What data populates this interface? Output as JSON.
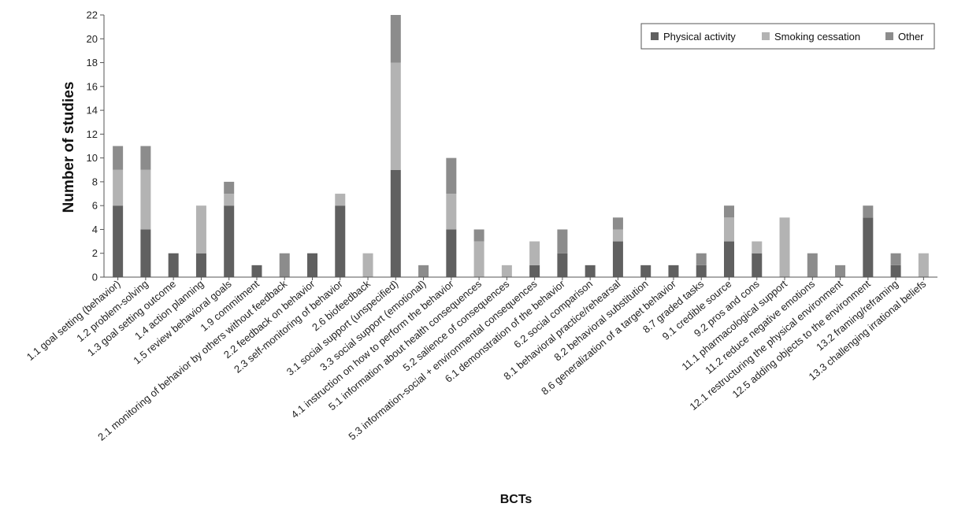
{
  "chart_data": {
    "type": "bar",
    "stacked": true,
    "xlabel": "BCTs",
    "ylabel": "Number of studies",
    "ylim": [
      0,
      22
    ],
    "yticks": [
      0,
      2,
      4,
      6,
      8,
      10,
      12,
      14,
      16,
      18,
      20,
      22
    ],
    "legend_position": "top-right",
    "grid": false,
    "categories": [
      "1.1 goal setting (behavior)",
      "1.2 problem-solving",
      "1.3 goal setting outcome",
      "1.4 action planning",
      "1.5 review behavioral goals",
      "1.9 commitment",
      "2.1 monitoring of behavior by others without feedback",
      "2.2 feedback on behavior",
      "2.3 self-monitoring of behavior",
      "2.6 biofeedback",
      "3.1 social support (unspecified)",
      "3.3 social support (emotional)",
      "4.1 instruction on how to perform the behavior",
      "5.1 information about health consequences",
      "5.2 salience of consequences",
      "5.3 information-social + environmental consequences",
      "6.1 demonstration of the behavior",
      "6.2 social comparison",
      "8.1 behavioral practice/rehearsal",
      "8.2 behavioral substitution",
      "8.6 generalization of a target behavior",
      "8.7 graded tasks",
      "9.1 credible source",
      "9.2 pros and cons",
      "11.1 pharmacological support",
      "11.2 reduce negative emotions",
      "12.1 restructuring the physical environment",
      "12.5 adding objects to the environment",
      "13.2 framing/reframing",
      "13.3 challenging irrational beliefs"
    ],
    "series": [
      {
        "name": "Physical activity",
        "color": "#606060",
        "values": [
          6,
          4,
          2,
          2,
          6,
          1,
          0,
          2,
          6,
          0,
          9,
          0,
          4,
          0,
          0,
          1,
          2,
          1,
          3,
          1,
          1,
          1,
          3,
          2,
          0,
          0,
          0,
          5,
          1,
          0
        ]
      },
      {
        "name": "Smoking cessation",
        "color": "#b3b3b3",
        "values": [
          3,
          5,
          0,
          4,
          1,
          0,
          0,
          0,
          1,
          2,
          9,
          0,
          3,
          3,
          1,
          2,
          0,
          0,
          1,
          0,
          0,
          0,
          2,
          1,
          5,
          0,
          0,
          0,
          0,
          2
        ]
      },
      {
        "name": "Other",
        "color": "#8c8c8c",
        "values": [
          2,
          2,
          0,
          0,
          1,
          0,
          2,
          0,
          0,
          0,
          4,
          1,
          3,
          1,
          0,
          0,
          2,
          0,
          1,
          0,
          0,
          1,
          1,
          0,
          0,
          2,
          1,
          1,
          1,
          0
        ]
      }
    ]
  }
}
